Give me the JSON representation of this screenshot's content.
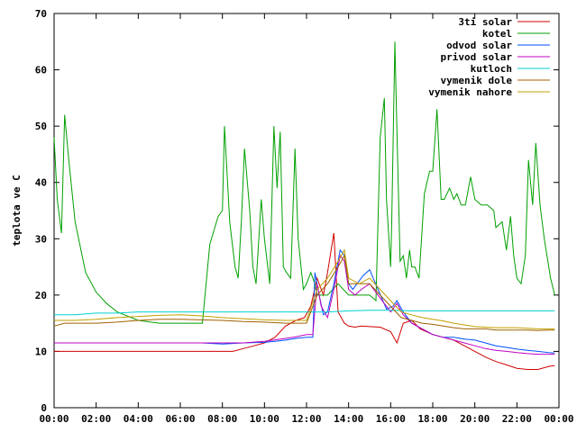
{
  "chart_data": {
    "type": "line",
    "title": "",
    "xlabel": "",
    "ylabel": "teplota ve C",
    "xlim": [
      0,
      24
    ],
    "ylim": [
      0,
      70
    ],
    "grid": false,
    "legend_position": "top-right",
    "x_ticks": [
      "00:00",
      "02:00",
      "04:00",
      "06:00",
      "08:00",
      "10:00",
      "12:00",
      "14:00",
      "16:00",
      "18:00",
      "20:00",
      "22:00",
      "00:00"
    ],
    "y_ticks": [
      "0",
      "10",
      "20",
      "30",
      "40",
      "50",
      "60",
      "70"
    ],
    "series": [
      {
        "name": "3ti solar",
        "color": "#d00000",
        "x": [
          0,
          0.5,
          1,
          2,
          3,
          4,
          5,
          6,
          7,
          7.9,
          8.5,
          9,
          9.5,
          10,
          10.5,
          11,
          11.5,
          11.9,
          12.2,
          12.5,
          12.8,
          13.0,
          13.3,
          13.5,
          13.8,
          14.0,
          14.3,
          14.6,
          15.0,
          15.5,
          16.0,
          16.3,
          16.6,
          17.0,
          17.4,
          18.0,
          18.5,
          19.0,
          19.5,
          20.0,
          20.5,
          21.0,
          21.5,
          22.0,
          22.5,
          23.0,
          23.5,
          23.8
        ],
        "y": [
          10,
          10,
          10,
          10,
          10,
          10,
          10,
          10,
          10,
          10,
          10,
          10.5,
          11,
          11.5,
          12.5,
          14.5,
          15.5,
          16,
          18,
          23,
          20,
          24,
          31,
          17,
          15,
          14.5,
          14.3,
          14.5,
          14.4,
          14.3,
          13.5,
          11.5,
          15,
          15.5,
          14,
          13,
          12.5,
          12,
          11,
          10,
          9,
          8.2,
          7.6,
          7.0,
          6.8,
          6.8,
          7.3,
          7.5
        ]
      },
      {
        "name": "kotel",
        "color": "#00a000",
        "x": [
          0,
          0.15,
          0.35,
          0.5,
          0.7,
          1.0,
          1.5,
          2.0,
          2.5,
          3.0,
          4.0,
          5.0,
          6.0,
          7.0,
          7.05,
          7.4,
          7.8,
          8.0,
          8.1,
          8.35,
          8.6,
          8.75,
          8.9,
          9.05,
          9.3,
          9.45,
          9.6,
          9.85,
          10.0,
          10.25,
          10.45,
          10.6,
          10.75,
          10.9,
          11.05,
          11.25,
          11.45,
          11.6,
          11.85,
          12.0,
          12.2,
          12.4,
          12.5,
          13.0,
          13.5,
          14.0,
          14.5,
          15.0,
          15.3,
          15.5,
          15.7,
          15.8,
          16.0,
          16.05,
          16.2,
          16.3,
          16.45,
          16.6,
          16.75,
          16.9,
          17.0,
          17.15,
          17.35,
          17.6,
          17.85,
          18.0,
          18.2,
          18.4,
          18.55,
          18.8,
          19.0,
          19.15,
          19.35,
          19.55,
          19.8,
          20.0,
          20.3,
          20.6,
          20.9,
          21.0,
          21.3,
          21.5,
          21.7,
          21.85,
          22.0,
          22.2,
          22.4,
          22.55,
          22.75,
          22.9,
          23.1,
          23.3,
          23.6,
          23.8
        ],
        "y": [
          48,
          37,
          31,
          52,
          44,
          33,
          24,
          20.5,
          18.5,
          17,
          15.5,
          15,
          15,
          15,
          15,
          29,
          34,
          35,
          50,
          33,
          25,
          23,
          33,
          46,
          35,
          25,
          22,
          37,
          30,
          22,
          50,
          39,
          49,
          25,
          24,
          23,
          46,
          30,
          21,
          22,
          24,
          22,
          20,
          20,
          22,
          20,
          20,
          20,
          19,
          48,
          55,
          37,
          25,
          33,
          65,
          49,
          26,
          27,
          23,
          28,
          25,
          25,
          23,
          38,
          42,
          42,
          53,
          37,
          37,
          39,
          37,
          38,
          36,
          36,
          41,
          37,
          36,
          36,
          35,
          32,
          33,
          28,
          34,
          27,
          23,
          22,
          27,
          44,
          36,
          47,
          36,
          30,
          23,
          20
        ]
      },
      {
        "name": "odvod solar",
        "color": "#0050ff",
        "x": [
          0,
          1,
          2,
          3,
          4,
          5,
          6,
          7,
          8,
          9,
          10,
          10.5,
          11,
          11.5,
          12.0,
          12.3,
          12.4,
          12.6,
          12.8,
          13.0,
          13.3,
          13.6,
          13.8,
          14.0,
          14.2,
          14.4,
          14.7,
          15.0,
          15.4,
          15.8,
          16.1,
          16.3,
          16.6,
          17.0,
          17.5,
          18.0,
          18.5,
          19.0,
          19.5,
          20.0,
          20.5,
          21.0,
          21.5,
          22.0,
          22.5,
          23.0,
          23.5,
          23.8
        ],
        "y": [
          11.5,
          11.5,
          11.5,
          11.5,
          11.5,
          11.5,
          11.5,
          11.5,
          11.3,
          11.5,
          11.6,
          11.8,
          12,
          12.3,
          12.5,
          12.5,
          24,
          20,
          16.5,
          17,
          22,
          28,
          27,
          22,
          21,
          22,
          23.5,
          24.5,
          21,
          17.5,
          18,
          19,
          17,
          15,
          14,
          13,
          12.5,
          12.5,
          12.2,
          12,
          11.5,
          11,
          10.7,
          10.4,
          10.2,
          10,
          9.8,
          9.7
        ]
      },
      {
        "name": "privod solar",
        "color": "#c000c0",
        "x": [
          0,
          1,
          2,
          3,
          4,
          5,
          6,
          7,
          8,
          9,
          10,
          11,
          11.5,
          12.0,
          12.3,
          12.5,
          12.7,
          13.0,
          13.3,
          13.6,
          13.8,
          14.0,
          14.3,
          14.6,
          15.0,
          15.4,
          15.8,
          16.0,
          16.3,
          16.6,
          17.0,
          17.5,
          18.0,
          18.5,
          19.0,
          19.5,
          20.0,
          20.5,
          21.0,
          21.5,
          22.0,
          22.5,
          23.0,
          23.5,
          23.8
        ],
        "y": [
          11.5,
          11.5,
          11.5,
          11.5,
          11.5,
          11.5,
          11.5,
          11.5,
          11.5,
          11.5,
          11.8,
          12.3,
          12.6,
          13,
          13,
          22,
          18,
          16,
          21,
          27,
          26,
          21,
          20,
          21,
          22,
          20,
          18,
          17,
          18.5,
          16.5,
          15,
          14,
          13,
          12.5,
          12,
          11.5,
          11,
          10.5,
          10.2,
          10,
          9.8,
          9.6,
          9.5,
          9.5,
          9.5
        ]
      },
      {
        "name": "kutloch",
        "color": "#00d0d0",
        "x": [
          0,
          1,
          2,
          3,
          4,
          5,
          6,
          7,
          8,
          9,
          10,
          11,
          12,
          13,
          14,
          15,
          16,
          17,
          18,
          19,
          20,
          21,
          22,
          23,
          23.8
        ],
        "y": [
          16.5,
          16.5,
          16.8,
          16.8,
          17,
          17,
          17,
          17,
          17,
          17,
          17,
          17,
          17,
          17,
          17.2,
          17.3,
          17.3,
          17.2,
          17.2,
          17.2,
          17.2,
          17.2,
          17.2,
          17.2,
          17.2
        ]
      },
      {
        "name": "vymenik dole",
        "color": "#a06000",
        "x": [
          0,
          0.5,
          1,
          2,
          3,
          4,
          5,
          6,
          7,
          8,
          9,
          10,
          11,
          12,
          12.5,
          13.0,
          13.5,
          13.8,
          14.0,
          14.5,
          15.0,
          15.5,
          16.0,
          16.5,
          17.0,
          17.5,
          18.0,
          18.5,
          19.0,
          19.5,
          20.0,
          20.5,
          21.0,
          21.5,
          22.0,
          22.5,
          23.0,
          23.5,
          23.8
        ],
        "y": [
          14.5,
          15,
          15,
          15,
          15.2,
          15.5,
          15.7,
          15.7,
          15.6,
          15.5,
          15.3,
          15.2,
          15,
          15,
          20,
          22,
          25,
          27,
          22,
          22,
          22,
          20,
          18,
          16,
          15.5,
          15,
          14.8,
          14.5,
          14.2,
          14,
          14,
          14,
          13.8,
          13.8,
          13.8,
          13.8,
          13.7,
          13.8,
          13.8
        ]
      },
      {
        "name": "vymenik nahore",
        "color": "#c0a000",
        "x": [
          0,
          0.5,
          1,
          2,
          3,
          4,
          5,
          6,
          7,
          8,
          9,
          10,
          11,
          12,
          12.5,
          13.0,
          13.5,
          13.8,
          14.0,
          14.5,
          15.0,
          15.5,
          16.0,
          16.5,
          17.0,
          17.5,
          18.0,
          18.5,
          19.0,
          19.5,
          20.0,
          20.5,
          21.0,
          21.5,
          22.0,
          22.5,
          23.0,
          23.5,
          23.8
        ],
        "y": [
          15.5,
          15.5,
          15.5,
          15.7,
          16,
          16.2,
          16.4,
          16.5,
          16.3,
          16,
          15.8,
          15.6,
          15.5,
          15.5,
          21,
          23,
          26,
          28,
          23,
          22,
          23,
          21,
          19,
          17,
          16.5,
          16,
          15.7,
          15.4,
          15,
          14.7,
          14.4,
          14.3,
          14.2,
          14.2,
          14.2,
          14.1,
          14,
          14,
          14
        ]
      }
    ]
  }
}
